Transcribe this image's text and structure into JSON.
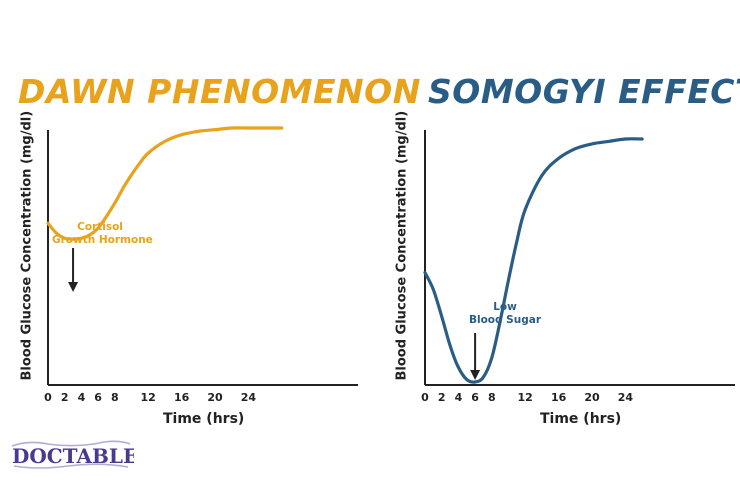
{
  "charts": [
    {
      "title": "DAWN PHENOMENON",
      "ylabel": "Blood Glucose Concentration (mg/dl)",
      "xlabel": "Time (hrs)",
      "annotation": [
        "Cortisol",
        "Growth Hormone"
      ],
      "color": "#e8a21b"
    },
    {
      "title": "SOMOGYI EFFECT",
      "ylabel": "Blood Glucose Concentration (mg/dl)",
      "xlabel": "Time (hrs)",
      "annotation": [
        "Low",
        "Blood Sugar"
      ],
      "color": "#2a5d86"
    }
  ],
  "chart_data": [
    {
      "type": "line",
      "title": "DAWN PHENOMENON",
      "xlabel": "Time (hrs)",
      "ylabel": "Blood Glucose Concentration (mg/dl)",
      "x_ticks": [
        0,
        2,
        4,
        6,
        8,
        12,
        16,
        20,
        24
      ],
      "x": [
        0,
        1,
        2,
        3,
        4,
        5,
        6,
        7,
        8,
        9,
        10,
        11,
        12,
        14,
        16,
        18,
        20,
        22,
        24,
        26,
        28
      ],
      "y": [
        0.43,
        0.37,
        0.34,
        0.335,
        0.34,
        0.36,
        0.4,
        0.47,
        0.55,
        0.64,
        0.72,
        0.79,
        0.85,
        0.92,
        0.96,
        0.98,
        0.99,
        1.0,
        1.0,
        1.0,
        1.0
      ],
      "annotation_x": 3,
      "y_ticks_shown": false,
      "grid": false,
      "color": "#e8a21b"
    },
    {
      "type": "line",
      "title": "SOMOGYI EFFECT",
      "xlabel": "Time (hrs)",
      "ylabel": "Blood Glucose Concentration (mg/dl)",
      "x_ticks": [
        0,
        2,
        4,
        6,
        8,
        12,
        16,
        20,
        24
      ],
      "x": [
        0,
        1,
        2,
        3,
        4,
        5,
        6,
        7,
        8,
        9,
        10,
        11,
        12,
        14,
        16,
        18,
        20,
        22,
        24,
        26
      ],
      "y": [
        0.45,
        0.38,
        0.27,
        0.15,
        0.06,
        0.01,
        0.0,
        0.02,
        0.1,
        0.25,
        0.42,
        0.58,
        0.71,
        0.85,
        0.92,
        0.96,
        0.98,
        0.99,
        1.0,
        1.0
      ],
      "annotation_x": 6,
      "y_ticks_shown": false,
      "grid": false,
      "color": "#2a5d86"
    }
  ],
  "logo": "DOCTABLET"
}
